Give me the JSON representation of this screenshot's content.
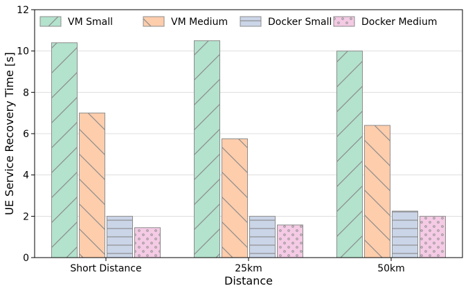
{
  "chart_data": {
    "type": "bar",
    "title": "",
    "xlabel": "Distance",
    "ylabel": "UE Service Recovery Time [s]",
    "ylim": [
      0,
      12
    ],
    "yticks": [
      0,
      2,
      4,
      6,
      8,
      10,
      12
    ],
    "grid": "horizontal",
    "legend_position": "top",
    "categories": [
      "Short Distance",
      "25km",
      "50km"
    ],
    "series": [
      {
        "name": "VM Small",
        "values": [
          10.4,
          10.5,
          10.0
        ],
        "color": "#b3e2cd",
        "hatch": "forward-diagonal"
      },
      {
        "name": "VM Medium",
        "values": [
          7.0,
          5.75,
          6.4
        ],
        "color": "#fdcdac",
        "hatch": "back-diagonal"
      },
      {
        "name": "Docker Small",
        "values": [
          2.0,
          2.0,
          2.25
        ],
        "color": "#cbd5e8",
        "hatch": "horizontal"
      },
      {
        "name": "Docker Medium",
        "values": [
          1.45,
          1.58,
          2.0
        ],
        "color": "#f4cae4",
        "hatch": "dots"
      }
    ]
  }
}
